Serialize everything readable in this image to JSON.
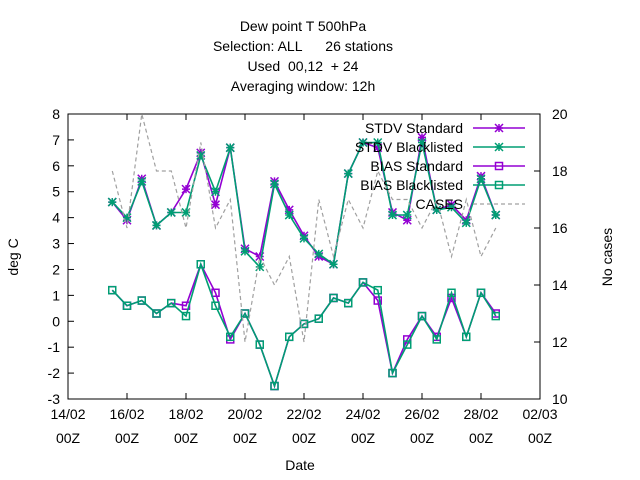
{
  "chart_data": {
    "type": "line",
    "title_lines": [
      "Dew point T 500hPa",
      "Selection: ALL      26 stations",
      "Used  00,12  + 24",
      "Averaging window: 12h"
    ],
    "xlabel": "Date",
    "ylabel": "deg C",
    "y2label": "No cases",
    "x_ticks": [
      {
        "day": 0,
        "line1": "14/02",
        "line2": "00Z"
      },
      {
        "day": 2,
        "line1": "16/02",
        "line2": "00Z"
      },
      {
        "day": 4,
        "line1": "18/02",
        "line2": "00Z"
      },
      {
        "day": 6,
        "line1": "20/02",
        "line2": "00Z"
      },
      {
        "day": 8,
        "line1": "22/02",
        "line2": "00Z"
      },
      {
        "day": 10,
        "line1": "24/02",
        "line2": "00Z"
      },
      {
        "day": 12,
        "line1": "26/02",
        "line2": "00Z"
      },
      {
        "day": 14,
        "line1": "28/02",
        "line2": "00Z"
      },
      {
        "day": 16,
        "line1": "02/03",
        "line2": "00Z"
      }
    ],
    "xlim": [
      0,
      16
    ],
    "ylim": [
      -3,
      8
    ],
    "y_ticks": [
      -3,
      -2,
      -1,
      0,
      1,
      2,
      3,
      4,
      5,
      6,
      7,
      8
    ],
    "y2lim": [
      10,
      20
    ],
    "y2_ticks": [
      10,
      12,
      14,
      16,
      18,
      20
    ],
    "x": [
      1.5,
      2.0,
      2.5,
      3.0,
      3.5,
      4.0,
      4.5,
      5.0,
      5.5,
      6.0,
      6.5,
      7.0,
      7.5,
      8.0,
      8.5,
      9.0,
      9.5,
      10.0,
      10.5,
      11.0,
      11.5,
      12.0,
      12.5,
      13.0,
      13.5,
      14.0,
      14.5
    ],
    "series": [
      {
        "name": "STDV Standard",
        "axis": "y1",
        "color": "#9400d3",
        "marker": "star",
        "values": [
          4.6,
          3.9,
          5.5,
          3.7,
          4.2,
          5.1,
          6.5,
          4.5,
          6.7,
          2.8,
          2.5,
          5.4,
          4.3,
          3.3,
          2.5,
          2.2,
          5.7,
          6.9,
          6.7,
          4.2,
          3.9,
          7.1,
          4.3,
          4.5,
          3.9,
          5.6,
          4.1
        ]
      },
      {
        "name": "STDV Blacklisted",
        "axis": "y1",
        "color": "#009e73",
        "marker": "star",
        "values": [
          4.6,
          4.0,
          5.4,
          3.7,
          4.2,
          4.2,
          6.4,
          5.0,
          6.7,
          2.7,
          2.1,
          5.3,
          4.1,
          3.2,
          2.6,
          2.2,
          5.7,
          6.9,
          6.9,
          4.1,
          4.1,
          6.9,
          4.3,
          4.4,
          3.8,
          5.5,
          4.1
        ]
      },
      {
        "name": "BIAS Standard",
        "axis": "y1",
        "color": "#9400d3",
        "marker": "square",
        "values": [
          1.2,
          0.6,
          0.8,
          0.3,
          0.7,
          0.6,
          2.2,
          1.1,
          -0.7,
          0.3,
          -0.9,
          -2.5,
          -0.6,
          -0.1,
          0.1,
          0.9,
          0.7,
          1.5,
          0.8,
          -2.0,
          -0.7,
          0.2,
          -0.6,
          0.9,
          -0.6,
          1.1,
          0.3
        ]
      },
      {
        "name": "BIAS Blacklisted",
        "axis": "y1",
        "color": "#009e73",
        "marker": "square",
        "values": [
          1.2,
          0.6,
          0.8,
          0.3,
          0.7,
          0.2,
          2.2,
          0.6,
          -0.6,
          0.3,
          -0.9,
          -2.5,
          -0.6,
          -0.1,
          0.1,
          0.9,
          0.7,
          1.5,
          1.2,
          -2.0,
          -0.9,
          0.2,
          -0.7,
          1.1,
          -0.6,
          1.1,
          0.2
        ]
      },
      {
        "name": "CASES",
        "axis": "y2",
        "color": "#a0a0a0",
        "marker": "none",
        "dash": true,
        "x": [
          1.5,
          2.0,
          2.5,
          3.0,
          3.5,
          4.0,
          4.5,
          5.0,
          5.5,
          6.0,
          6.5,
          7.0,
          7.5,
          8.0,
          8.5,
          9.0,
          9.5,
          10.0,
          10.5,
          11.0,
          11.5,
          12.0,
          12.5,
          13.0,
          13.5,
          14.0,
          14.5
        ],
        "values": [
          18.0,
          16.0,
          20.0,
          18.0,
          18.0,
          16.0,
          19.0,
          16.0,
          17.0,
          12.0,
          15.0,
          14.0,
          15.0,
          12.0,
          17.0,
          15.0,
          17.0,
          16.0,
          18.0,
          17.0,
          17.0,
          16.0,
          17.0,
          15.0,
          17.0,
          15.0,
          16.0
        ]
      }
    ],
    "legend": "top-right",
    "grid": false
  }
}
